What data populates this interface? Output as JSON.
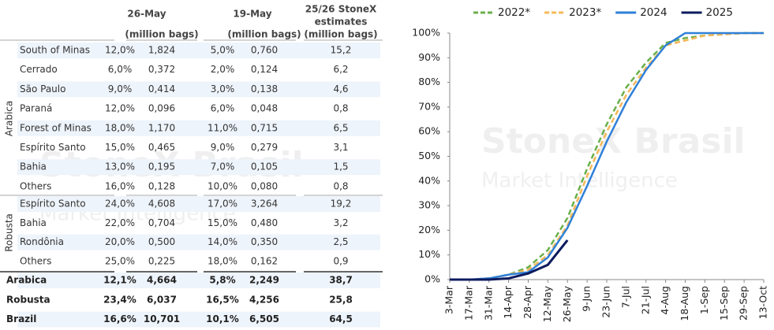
{
  "watermark": {
    "brand": "StoneX Brasil",
    "sub": "Market Intelligence"
  },
  "table": {
    "header": {
      "week1": "26-May",
      "week1_unit": "(million bags)",
      "week2": "19-May",
      "week2_unit": "(million bags)",
      "estimate": [
        "25/26 StoneX",
        "estimates",
        "(million bags)"
      ]
    },
    "groups": [
      {
        "name": "Arabica",
        "rows": [
          {
            "name": "South of Minas",
            "cells": [
              "12,0%",
              "1,824",
              "5,0%",
              "0,760",
              "15,2"
            ]
          },
          {
            "name": "Cerrado",
            "cells": [
              "6,0%",
              "0,372",
              "2,0%",
              "0,124",
              "6,2"
            ]
          },
          {
            "name": "São Paulo",
            "cells": [
              "9,0%",
              "0,414",
              "3,0%",
              "0,138",
              "4,6"
            ]
          },
          {
            "name": "Paraná",
            "cells": [
              "12,0%",
              "0,096",
              "6,0%",
              "0,048",
              "0,8"
            ]
          },
          {
            "name": "Forest of Minas",
            "cells": [
              "18,0%",
              "1,170",
              "11,0%",
              "0,715",
              "6,5"
            ]
          },
          {
            "name": "Espírito Santo",
            "cells": [
              "15,0%",
              "0,465",
              "9,0%",
              "0,279",
              "3,1"
            ]
          },
          {
            "name": "Bahia",
            "cells": [
              "13,0%",
              "0,195",
              "7,0%",
              "0,105",
              "1,5"
            ]
          },
          {
            "name": "Others",
            "cells": [
              "16,0%",
              "0,128",
              "10,0%",
              "0,080",
              "0,8"
            ]
          }
        ]
      },
      {
        "name": "Robusta",
        "rows": [
          {
            "name": "Espírito Santo",
            "cells": [
              "24,0%",
              "4,608",
              "17,0%",
              "3,264",
              "19,2"
            ]
          },
          {
            "name": "Bahia",
            "cells": [
              "22,0%",
              "0,704",
              "15,0%",
              "0,480",
              "3,2"
            ]
          },
          {
            "name": "Rondônia",
            "cells": [
              "20,0%",
              "0,500",
              "14,0%",
              "0,350",
              "2,5"
            ]
          },
          {
            "name": "Others",
            "cells": [
              "25,0%",
              "0,225",
              "18,0%",
              "0,162",
              "0,9"
            ]
          }
        ]
      }
    ],
    "totals": [
      {
        "name": "Arabica",
        "cells": [
          "12,1%",
          "4,664",
          "5,8%",
          "2,249",
          "38,7"
        ]
      },
      {
        "name": "Robusta",
        "cells": [
          "23,4%",
          "6,037",
          "16,5%",
          "4,256",
          "25,8"
        ]
      },
      {
        "name": "Brazil",
        "cells": [
          "16,6%",
          "10,701",
          "10,1%",
          "6,505",
          "64,5"
        ]
      }
    ]
  },
  "chart_data": {
    "type": "line",
    "categories": [
      "3-Mar",
      "17-Mar",
      "31-Mar",
      "14-Apr",
      "28-Apr",
      "12-May",
      "26-May",
      "9-Jun",
      "23-Jun",
      "7-Jul",
      "21-Jul",
      "4-Aug",
      "18-Aug",
      "1-Sep",
      "15-Sep",
      "29-Sep",
      "13-Oct"
    ],
    "series": [
      {
        "name": "2022*",
        "color": "#6ab04c",
        "dashed": true,
        "values": [
          0,
          0,
          0.5,
          2,
          5,
          12,
          25,
          45,
          63,
          78,
          88,
          96,
          98,
          99,
          99.5,
          100,
          100
        ]
      },
      {
        "name": "2023*",
        "color": "#f5b85a",
        "dashed": true,
        "values": [
          0,
          0,
          0.5,
          2,
          4,
          10,
          22,
          42,
          60,
          75,
          86,
          95,
          97,
          99,
          99.5,
          100,
          100
        ]
      },
      {
        "name": "2024",
        "color": "#2f80d8",
        "dashed": false,
        "values": [
          0,
          0,
          0.5,
          2,
          3,
          9,
          21,
          38,
          56,
          72,
          85,
          95,
          100,
          100,
          100,
          100,
          100
        ]
      },
      {
        "name": "2025",
        "color": "#0d1b5e",
        "dashed": false,
        "values": [
          0,
          0,
          0,
          0.5,
          2.5,
          6,
          16,
          null,
          null,
          null,
          null,
          null,
          null,
          null,
          null,
          null,
          null
        ]
      }
    ],
    "ylim": [
      0,
      100
    ],
    "yticks": [
      {
        "value": 0,
        "label": "0%"
      },
      {
        "value": 10,
        "label": "10%"
      },
      {
        "value": 20,
        "label": "20%"
      },
      {
        "value": 30,
        "label": "30%"
      },
      {
        "value": 40,
        "label": "40%"
      },
      {
        "value": 50,
        "label": "50%"
      },
      {
        "value": 60,
        "label": "60%"
      },
      {
        "value": 70,
        "label": "70%"
      },
      {
        "value": 80,
        "label": "80%"
      },
      {
        "value": 90,
        "label": "90%"
      },
      {
        "value": 100,
        "label": "100%"
      }
    ],
    "legend": "top"
  }
}
